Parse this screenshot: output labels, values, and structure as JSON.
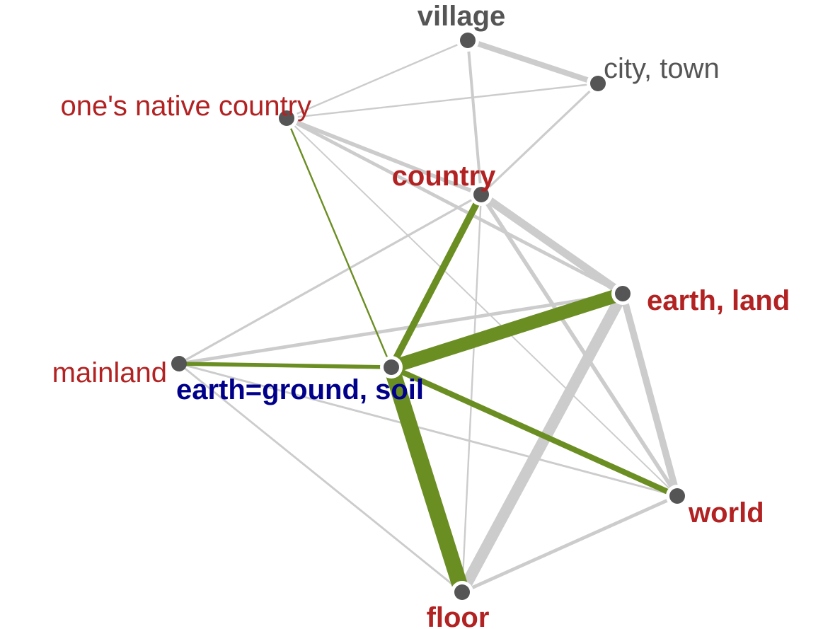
{
  "colors": {
    "background": "#ffffff",
    "edge_default": "#cccccc",
    "edge_highlight": "#6b8e23",
    "node_fill": "#555555",
    "node_halo": "#ffffff",
    "label_gray": "#555555",
    "label_red": "#b22222",
    "label_blue": "#00008b"
  },
  "nodes": [
    {
      "id": "village",
      "label": "village",
      "style": "gray",
      "bold": true,
      "halo": true
    },
    {
      "id": "city",
      "label": "city, town",
      "style": "gray",
      "bold": false,
      "halo": true
    },
    {
      "id": "native",
      "label": "one's native country",
      "style": "red",
      "bold": false,
      "halo": true
    },
    {
      "id": "country",
      "label": "country",
      "style": "red",
      "bold": true,
      "halo": true
    },
    {
      "id": "earth_land",
      "label": "earth, land",
      "style": "red",
      "bold": true,
      "halo": true
    },
    {
      "id": "mainland",
      "label": "mainland",
      "style": "red",
      "bold": false,
      "halo": false
    },
    {
      "id": "soil",
      "label": "earth=ground, soil",
      "style": "blue",
      "bold": true,
      "halo": true
    },
    {
      "id": "world",
      "label": "world",
      "style": "red",
      "bold": true,
      "halo": true
    },
    {
      "id": "floor",
      "label": "floor",
      "style": "red",
      "bold": true,
      "halo": true
    }
  ],
  "edges": [
    {
      "source": "village",
      "target": "city",
      "weight": 5,
      "highlight": false
    },
    {
      "source": "village",
      "target": "native",
      "weight": 1.5,
      "highlight": false
    },
    {
      "source": "village",
      "target": "country",
      "weight": 2.5,
      "highlight": false
    },
    {
      "source": "native",
      "target": "city",
      "weight": 1.5,
      "highlight": false
    },
    {
      "source": "city",
      "target": "country",
      "weight": 2,
      "highlight": false
    },
    {
      "source": "native",
      "target": "country",
      "weight": 3.5,
      "highlight": false
    },
    {
      "source": "native",
      "target": "earth_land",
      "weight": 3,
      "highlight": false
    },
    {
      "source": "native",
      "target": "world",
      "weight": 1.2,
      "highlight": false
    },
    {
      "source": "native",
      "target": "soil",
      "weight": 1.5,
      "highlight": true
    },
    {
      "source": "country",
      "target": "earth_land",
      "weight": 7,
      "highlight": false
    },
    {
      "source": "country",
      "target": "mainland",
      "weight": 2,
      "highlight": false
    },
    {
      "source": "country",
      "target": "world",
      "weight": 3.5,
      "highlight": false
    },
    {
      "source": "country",
      "target": "floor",
      "weight": 1.5,
      "highlight": false
    },
    {
      "source": "country",
      "target": "soil",
      "weight": 6,
      "highlight": true
    },
    {
      "source": "earth_land",
      "target": "soil",
      "weight": 12,
      "highlight": true
    },
    {
      "source": "earth_land",
      "target": "mainland",
      "weight": 3,
      "highlight": false
    },
    {
      "source": "earth_land",
      "target": "world",
      "weight": 6,
      "highlight": false
    },
    {
      "source": "earth_land",
      "target": "floor",
      "weight": 10,
      "highlight": false
    },
    {
      "source": "mainland",
      "target": "soil",
      "weight": 3.5,
      "highlight": true
    },
    {
      "source": "mainland",
      "target": "world",
      "weight": 1.8,
      "highlight": false
    },
    {
      "source": "mainland",
      "target": "floor",
      "weight": 1.8,
      "highlight": false
    },
    {
      "source": "soil",
      "target": "world",
      "weight": 5,
      "highlight": true
    },
    {
      "source": "soil",
      "target": "floor",
      "weight": 14,
      "highlight": true
    },
    {
      "source": "world",
      "target": "floor",
      "weight": 3,
      "highlight": false
    }
  ]
}
